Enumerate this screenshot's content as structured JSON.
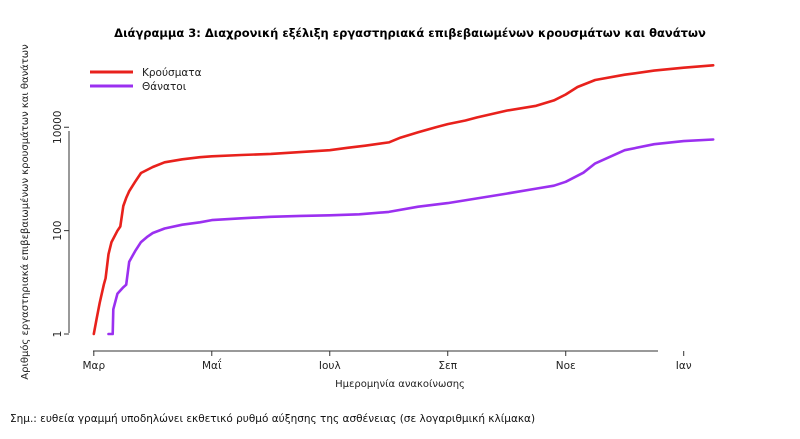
{
  "note": "Σημ.: ευθεία γραμμή υποδηλώνει εκθετικό ρυθμό αύξησης της ασθένειας (σε λογαριθμική κλίμακα)",
  "chart_data": {
    "type": "line",
    "title": "Διάγραμμα 3: Διαχρονική εξέλιξη εργαστηριακά επιβεβαιωμένων κρουσμάτων και θανάτων",
    "xlabel": "Ημερομηνία ανακοίνωσης",
    "ylabel": "Αριθμός εργαστηριακά επιβεβαιωμένων κρουσμάτων και θανάτων",
    "x_unit": "months from 1 Mar",
    "y_scale": "log",
    "ylim": [
      0.7,
      200000
    ],
    "xlim": [
      -0.2,
      10.7
    ],
    "x_ticks": [
      {
        "value": 0,
        "label": "Μαρ"
      },
      {
        "value": 2,
        "label": "Μαΐ"
      },
      {
        "value": 4,
        "label": "Ιουλ"
      },
      {
        "value": 6,
        "label": "Σεπ"
      },
      {
        "value": 8,
        "label": "Νοε"
      },
      {
        "value": 10,
        "label": "Ιαν"
      }
    ],
    "y_ticks": [
      {
        "value": 1,
        "label": "1"
      },
      {
        "value": 100,
        "label": "100"
      },
      {
        "value": 10000,
        "label": "10000"
      }
    ],
    "grid": false,
    "legend_position": "top-left",
    "series": [
      {
        "name": "Κρούσματα",
        "color": "#e8211c",
        "points": [
          [
            0,
            1
          ],
          [
            0.05,
            2
          ],
          [
            0.1,
            4
          ],
          [
            0.17,
            9
          ],
          [
            0.2,
            12
          ],
          [
            0.25,
            35
          ],
          [
            0.3,
            60
          ],
          [
            0.4,
            99
          ],
          [
            0.45,
            120
          ],
          [
            0.5,
            300
          ],
          [
            0.55,
            430
          ],
          [
            0.6,
            580
          ],
          [
            0.7,
            880
          ],
          [
            0.8,
            1300
          ],
          [
            1,
            1700
          ],
          [
            1.2,
            2100
          ],
          [
            1.5,
            2400
          ],
          [
            1.8,
            2630
          ],
          [
            2,
            2740
          ],
          [
            2.5,
            2900
          ],
          [
            3,
            3050
          ],
          [
            3.5,
            3300
          ],
          [
            4,
            3600
          ],
          [
            4.3,
            4000
          ],
          [
            4.6,
            4400
          ],
          [
            5,
            5100
          ],
          [
            5.2,
            6300
          ],
          [
            5.5,
            8000
          ],
          [
            5.8,
            10000
          ],
          [
            6,
            11500
          ],
          [
            6.3,
            13500
          ],
          [
            6.5,
            15500
          ],
          [
            7,
            21000
          ],
          [
            7.5,
            26000
          ],
          [
            7.8,
            33000
          ],
          [
            8,
            43000
          ],
          [
            8.2,
            60000
          ],
          [
            8.5,
            82000
          ],
          [
            9,
            104000
          ],
          [
            9.5,
            125000
          ],
          [
            10,
            142000
          ],
          [
            10.5,
            158000
          ]
        ]
      },
      {
        "name": "Θάνατοι",
        "color": "#9b30f0",
        "points": [
          [
            0.25,
            1
          ],
          [
            0.32,
            1
          ],
          [
            0.33,
            3
          ],
          [
            0.4,
            6
          ],
          [
            0.5,
            8
          ],
          [
            0.55,
            9
          ],
          [
            0.6,
            25
          ],
          [
            0.7,
            40
          ],
          [
            0.8,
            60
          ],
          [
            0.9,
            75
          ],
          [
            1,
            90
          ],
          [
            1.2,
            110
          ],
          [
            1.5,
            130
          ],
          [
            1.8,
            145
          ],
          [
            2,
            160
          ],
          [
            2.5,
            173
          ],
          [
            3,
            185
          ],
          [
            3.5,
            193
          ],
          [
            4,
            198
          ],
          [
            4.5,
            207
          ],
          [
            5,
            230
          ],
          [
            5.5,
            290
          ],
          [
            6,
            340
          ],
          [
            6.5,
            420
          ],
          [
            7,
            520
          ],
          [
            7.5,
            650
          ],
          [
            7.8,
            740
          ],
          [
            8,
            880
          ],
          [
            8.3,
            1320
          ],
          [
            8.5,
            2000
          ],
          [
            9,
            3600
          ],
          [
            9.5,
            4700
          ],
          [
            10,
            5400
          ],
          [
            10.5,
            5800
          ]
        ]
      }
    ]
  }
}
